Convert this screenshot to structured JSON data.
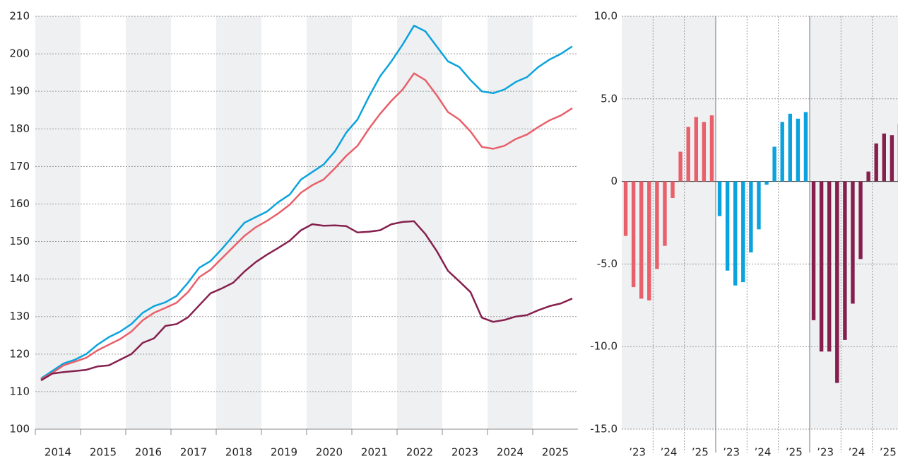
{
  "chart_data": [
    {
      "type": "line",
      "x": [
        2014.125,
        2014.375,
        2014.625,
        2014.875,
        2015.125,
        2015.375,
        2015.625,
        2015.875,
        2016.125,
        2016.375,
        2016.625,
        2016.875,
        2017.125,
        2017.375,
        2017.625,
        2017.875,
        2018.125,
        2018.375,
        2018.625,
        2018.875,
        2019.125,
        2019.375,
        2019.625,
        2019.875,
        2020.125,
        2020.375,
        2020.625,
        2020.875,
        2021.125,
        2021.375,
        2021.625,
        2021.875,
        2022.125,
        2022.375,
        2022.625,
        2022.875,
        2023.125,
        2023.375,
        2023.625,
        2023.875,
        2024.125,
        2024.375,
        2024.625,
        2024.875,
        2025.125,
        2025.375,
        2025.625,
        2025.875
      ],
      "series": [
        {
          "color": "#0ba3dd",
          "values": [
            113.5,
            115.5,
            117.5,
            118.5,
            120,
            122.5,
            124.5,
            126,
            128,
            131,
            132.8,
            133.8,
            135.5,
            139,
            143,
            144.8,
            148,
            151.5,
            155,
            156.5,
            158,
            160.5,
            162.5,
            166.5,
            168.5,
            170.5,
            174,
            179,
            182.5,
            188.5,
            194,
            198,
            202.5,
            207.5,
            206,
            202,
            198,
            196.5,
            193,
            190,
            189.5,
            190.5,
            192.5,
            193.8,
            196.5,
            198.5,
            200,
            202
          ]
        },
        {
          "color": "#e8606a",
          "values": [
            113.3,
            115,
            117,
            118,
            119,
            121,
            122.5,
            124,
            126,
            129,
            131,
            132.3,
            133.7,
            136.5,
            140.5,
            142.5,
            145.5,
            148.5,
            151.5,
            153.8,
            155.5,
            157.5,
            159.8,
            163,
            165,
            166.5,
            169.5,
            172.8,
            175.5,
            180,
            184,
            187.5,
            190.5,
            194.8,
            193,
            189,
            184.5,
            182.5,
            179.3,
            175.2,
            174.7,
            175.5,
            177.3,
            178.5,
            180.5,
            182.3,
            183.6,
            185.5
          ]
        },
        {
          "color": "#85204e",
          "values": [
            113,
            114.8,
            115.2,
            115.5,
            115.8,
            116.7,
            117,
            118.5,
            120,
            123,
            124.2,
            127.5,
            128,
            129.8,
            133,
            136.2,
            137.5,
            139,
            142,
            144.5,
            146.5,
            148.3,
            150.2,
            153,
            154.6,
            154.2,
            154.3,
            154.1,
            152.4,
            152.6,
            153,
            154.6,
            155.2,
            155.4,
            152,
            147.5,
            142.2,
            139.4,
            136.5,
            129.7,
            128.6,
            129.1,
            130,
            130.4,
            131.7,
            132.8,
            133.5,
            134.8
          ]
        }
      ],
      "xlim": [
        2014,
        2026
      ],
      "xticks": [
        2014,
        2015,
        2016,
        2017,
        2018,
        2019,
        2020,
        2021,
        2022,
        2023,
        2024,
        2025
      ],
      "ylim": [
        100,
        210
      ],
      "yticks": [
        100,
        110,
        120,
        130,
        140,
        150,
        160,
        170,
        180,
        190,
        200,
        210
      ],
      "grid": true,
      "bands": true
    },
    {
      "type": "bar",
      "categories": [
        "’23",
        null,
        null,
        null,
        "’24",
        null,
        null,
        null,
        "’25",
        null,
        null,
        null
      ],
      "series": [
        {
          "color": "#e8606a",
          "values": [
            -3.3,
            -6.4,
            -7.1,
            -7.2,
            -5.3,
            -3.9,
            -1.0,
            1.8,
            3.3,
            3.9,
            3.6,
            4.0
          ]
        },
        {
          "color": "#0ba3dd",
          "values": [
            -2.1,
            -5.4,
            -6.3,
            -6.1,
            -4.3,
            -2.9,
            -0.2,
            2.1,
            3.6,
            4.1,
            3.8,
            4.2
          ]
        },
        {
          "color": "#85204e",
          "values": [
            -8.4,
            -10.3,
            -10.3,
            -12.2,
            -9.6,
            -7.4,
            -4.7,
            0.6,
            2.3,
            2.9,
            2.8,
            3.5
          ]
        }
      ],
      "ylim": [
        -15,
        10
      ],
      "yticks": [
        {
          "value": 10,
          "label": "10.0"
        },
        {
          "value": 5,
          "label": "5.0"
        },
        0,
        {
          "value": -5,
          "label": "-5.0"
        },
        {
          "value": -10,
          "label": "-10.0"
        },
        {
          "value": -15,
          "label": "-15.0"
        }
      ],
      "grid": true,
      "bands": true
    }
  ]
}
